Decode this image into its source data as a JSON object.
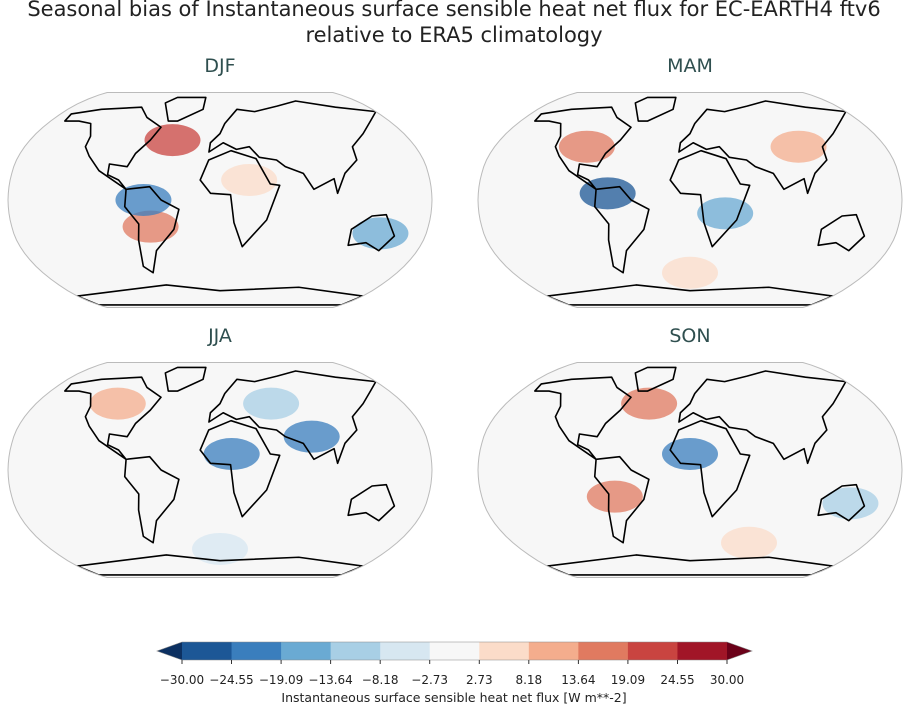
{
  "title": [
    "Seasonal bias of Instantaneous surface sensible heat net flux for EC-EARTH4 ftv6",
    "relative to ERA5 climatology"
  ],
  "panels": [
    {
      "title": "DJF"
    },
    {
      "title": "MAM"
    },
    {
      "title": "JJA"
    },
    {
      "title": "SON"
    }
  ],
  "colorbar": {
    "label": "Instantaneous surface sensible heat net flux [W m**-2]",
    "ticks": [
      {
        "value": -30,
        "label": "−30.00"
      },
      {
        "value": -24.55,
        "label": "−24.55"
      },
      {
        "value": -19.09,
        "label": "−19.09"
      },
      {
        "value": -13.64,
        "label": "−13.64"
      },
      {
        "value": -8.18,
        "label": "−8.18"
      },
      {
        "value": -2.73,
        "label": "−2.73"
      },
      2.73,
      8.18,
      13.64,
      19.09,
      24.55,
      {
        "value": 30,
        "label": "30.00"
      }
    ],
    "colors": [
      "#1c5796",
      "#3a7ebd",
      "#6aaad3",
      "#a8cfe5",
      "#d7e7f1",
      "#f7f7f7",
      "#fbdcc9",
      "#f4ad8d",
      "#e07a60",
      "#c94440",
      "#a11527"
    ],
    "under_color": "#0c3061",
    "over_color": "#6b0119"
  }
}
